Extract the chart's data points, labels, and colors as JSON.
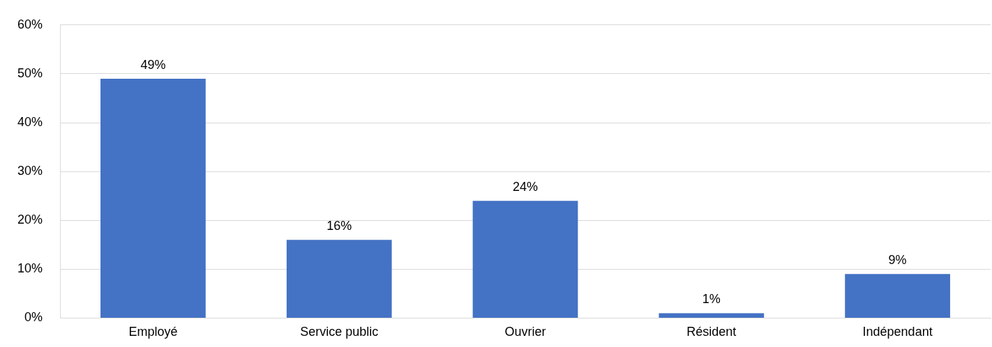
{
  "chart_data": {
    "type": "bar",
    "categories": [
      "Employé",
      "Service public",
      "Ouvrier",
      "Résident",
      "Indépendant"
    ],
    "values": [
      49,
      16,
      24,
      1,
      9
    ],
    "value_labels": [
      "49%",
      "16%",
      "24%",
      "1%",
      "9%"
    ],
    "color": "#4472c4",
    "ylim": [
      0,
      60
    ],
    "yticks": [
      {
        "value": 0,
        "label": "0%"
      },
      {
        "value": 10,
        "label": "10%"
      },
      {
        "value": 20,
        "label": "20%"
      },
      {
        "value": 30,
        "label": "30%"
      },
      {
        "value": 40,
        "label": "40%"
      },
      {
        "value": 50,
        "label": "50%"
      },
      {
        "value": 60,
        "label": "60%"
      }
    ],
    "grid": "y"
  }
}
